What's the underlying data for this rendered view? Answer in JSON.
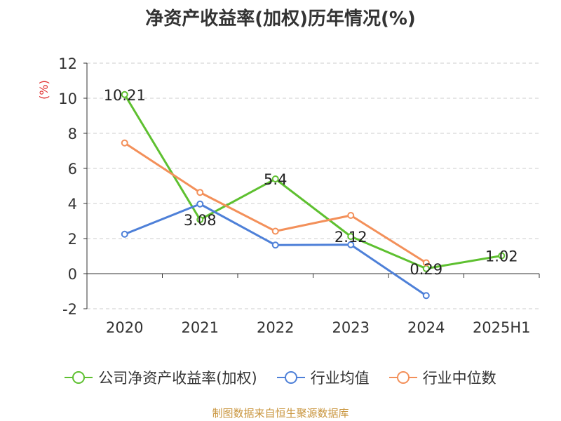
{
  "chart_data": {
    "type": "line",
    "title": "净资产收益率(加权)历年情况(%)",
    "ylabel": "(%)",
    "categories": [
      "2020",
      "2021",
      "2022",
      "2023",
      "2024",
      "2025H1"
    ],
    "ylim": [
      -2,
      12
    ],
    "yticks": [
      -2,
      0,
      2,
      4,
      6,
      8,
      10,
      12
    ],
    "grid": "horizontal dashed",
    "legend_position": "bottom",
    "series": [
      {
        "name": "公司净资产收益率(加权)",
        "color": "#5ec030",
        "values": [
          10.21,
          3.08,
          5.4,
          2.12,
          0.29,
          1.02
        ],
        "labels": [
          "10.21",
          "3.08",
          "5.4",
          "2.12",
          "0.29",
          "1.02"
        ]
      },
      {
        "name": "行业均值",
        "color": "#4e80d8",
        "values": [
          2.25,
          3.97,
          1.63,
          1.65,
          -1.25,
          null
        ]
      },
      {
        "name": "行业中位数",
        "color": "#f3905a",
        "values": [
          7.45,
          4.63,
          2.42,
          3.32,
          0.62,
          null
        ]
      }
    ]
  },
  "footer": {
    "source": "制图数据来自恒生聚源数据库"
  }
}
